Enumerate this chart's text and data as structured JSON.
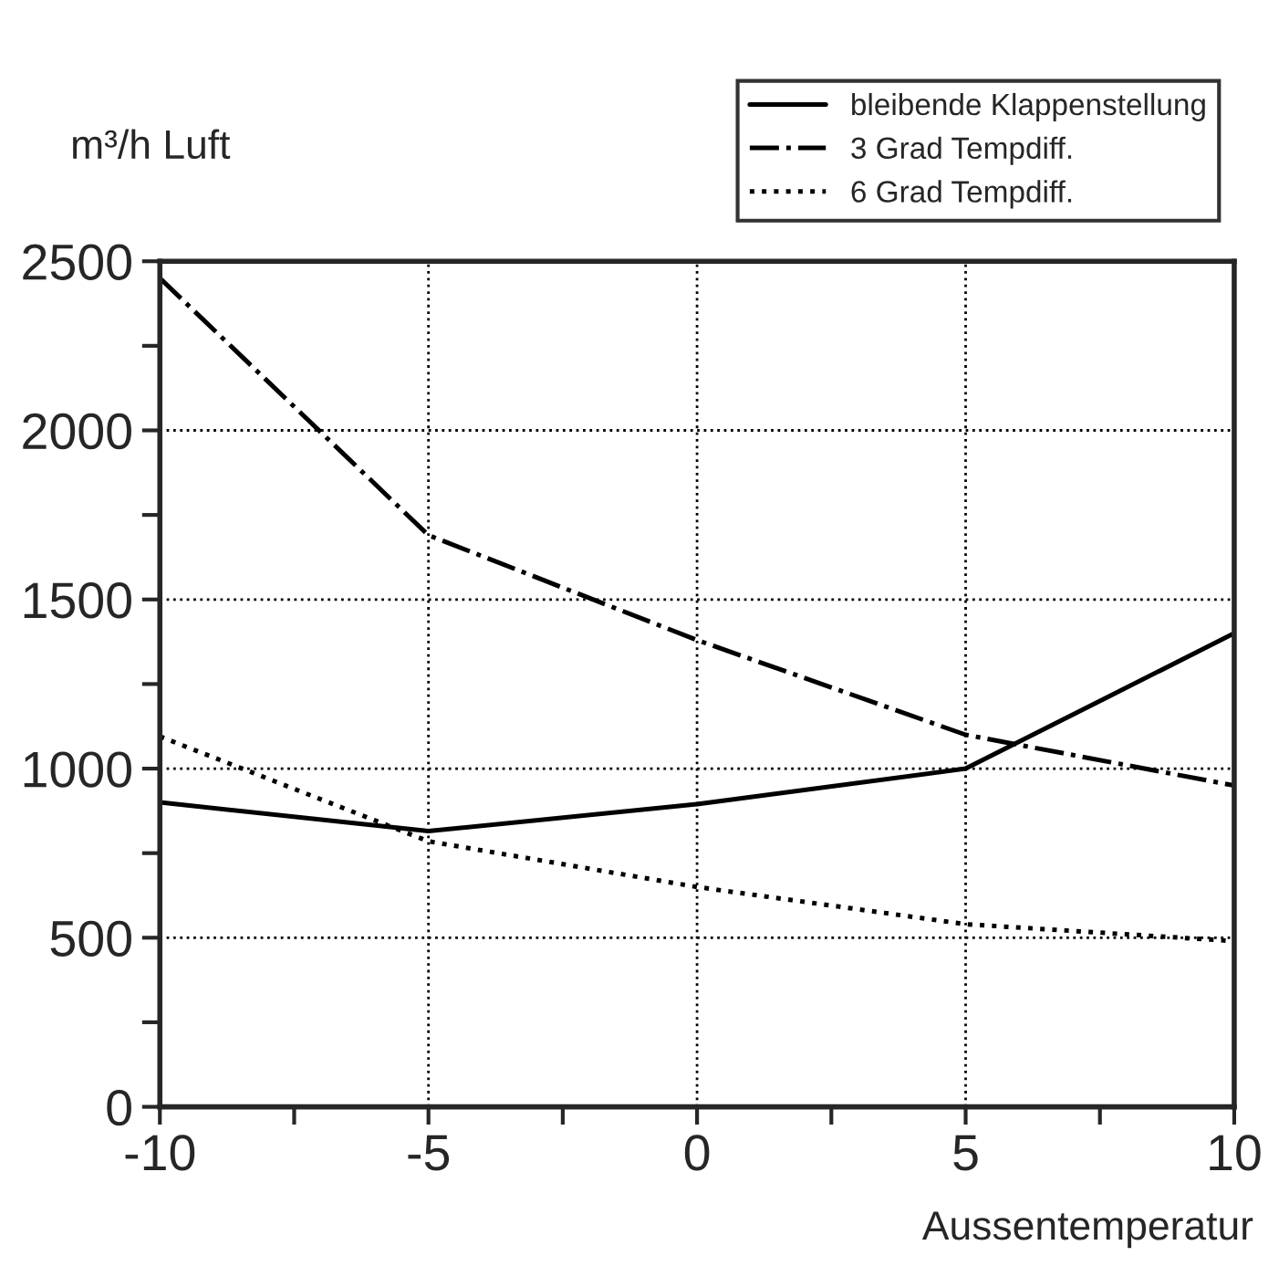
{
  "chart_data": {
    "type": "line",
    "ylabel": "m³/h Luft",
    "xlabel": "Aussentemperatur",
    "x": [
      -10,
      -5,
      0,
      5,
      10
    ],
    "series": [
      {
        "name": "bleibende Klappenstellung",
        "color": "#000000",
        "line_style": "solid",
        "values": [
          900,
          815,
          895,
          1000,
          1400
        ]
      },
      {
        "name": "3 Grad Tempdiff.",
        "color": "#000000",
        "line_style": "dashdot",
        "values": [
          2450,
          1690,
          1380,
          1100,
          950
        ]
      },
      {
        "name": "6 Grad Tempdiff.",
        "color": "#000000",
        "line_style": "dotted",
        "values": [
          1095,
          785,
          650,
          540,
          490
        ]
      }
    ],
    "xlim": [
      -10,
      10
    ],
    "ylim": [
      0,
      2500
    ],
    "xticks": [
      -10,
      {
        "value": -7.5,
        "label": null
      },
      -5,
      {
        "value": -2.5,
        "label": null
      },
      0,
      {
        "value": 2.5,
        "label": null
      },
      5,
      {
        "value": 7.5,
        "label": null
      },
      10
    ],
    "yticks": [
      0,
      {
        "value": 250,
        "label": null
      },
      500,
      {
        "value": 750,
        "label": null
      },
      1000,
      {
        "value": 1250,
        "label": null
      },
      1500,
      {
        "value": 1750,
        "label": null
      },
      2000,
      {
        "value": 2250,
        "label": null
      },
      2500
    ],
    "grid": true,
    "legend": "top right",
    "marker": "none"
  }
}
